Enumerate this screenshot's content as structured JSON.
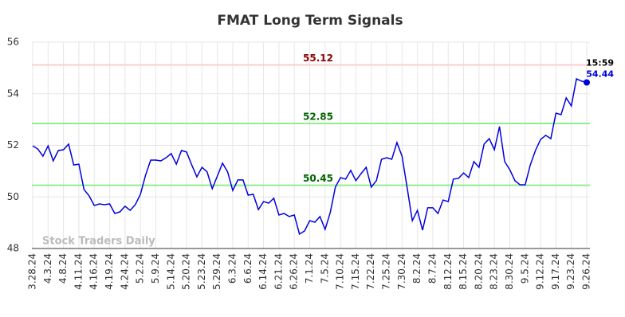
{
  "chart_data": {
    "type": "line",
    "title": "FMAT Long Term Signals",
    "categories": [
      "3.28.24",
      null,
      null,
      "4.3.24",
      null,
      null,
      "4.8.24",
      null,
      null,
      "4.11.24",
      null,
      null,
      "4.16.24",
      null,
      null,
      "4.19.24",
      null,
      null,
      "4.24.24",
      null,
      null,
      "5.2.24",
      null,
      null,
      "5.9.24",
      null,
      null,
      "5.14.24",
      null,
      null,
      "5.20.24",
      null,
      null,
      "5.23.24",
      null,
      null,
      "5.29.24",
      null,
      null,
      "6.3.24",
      null,
      null,
      "6.6.24",
      null,
      null,
      "6.14.24",
      null,
      null,
      "6.21.24",
      null,
      null,
      "6.26.24",
      null,
      null,
      "7.1.24",
      null,
      null,
      "7.5.24",
      null,
      null,
      "7.10.24",
      null,
      null,
      "7.15.24",
      null,
      null,
      "7.22.24",
      null,
      null,
      "7.25.24",
      null,
      null,
      "7.30.24",
      null,
      null,
      "8.2.24",
      null,
      null,
      "8.7.24",
      null,
      null,
      "8.12.24",
      null,
      null,
      "8.15.24",
      null,
      null,
      "8.20.24",
      null,
      null,
      "8.23.24",
      null,
      null,
      "8.30.24",
      null,
      null,
      "9.5.24",
      null,
      null,
      "9.12.24",
      null,
      null,
      "9.17.24",
      null,
      null,
      "9.23.24",
      null,
      null,
      "9.26.24"
    ],
    "values": [
      51.98,
      51.86,
      51.58,
      51.98,
      51.4,
      51.8,
      51.83,
      52.05,
      51.24,
      51.27,
      50.29,
      50.04,
      49.67,
      49.73,
      49.7,
      49.73,
      49.36,
      49.42,
      49.64,
      49.48,
      49.7,
      50.1,
      50.84,
      51.43,
      51.43,
      51.4,
      51.52,
      51.68,
      51.27,
      51.8,
      51.74,
      51.24,
      50.78,
      51.15,
      50.97,
      50.32,
      50.81,
      51.31,
      50.97,
      50.25,
      50.66,
      50.66,
      50.07,
      50.1,
      49.51,
      49.82,
      49.76,
      49.95,
      49.3,
      49.36,
      49.24,
      49.3,
      48.56,
      48.68,
      49.08,
      49.02,
      49.24,
      48.74,
      49.39,
      50.38,
      50.75,
      50.69,
      51.03,
      50.63,
      50.9,
      51.15,
      50.38,
      50.63,
      51.46,
      51.52,
      51.46,
      52.11,
      51.58,
      50.35,
      49.08,
      49.48,
      48.71,
      49.58,
      49.58,
      49.36,
      49.88,
      49.82,
      50.69,
      50.72,
      50.93,
      50.75,
      51.37,
      51.15,
      52.05,
      52.26,
      51.83,
      52.73,
      51.37,
      51.06,
      50.63,
      50.47,
      50.47,
      51.24,
      51.8,
      52.23,
      52.39,
      52.26,
      53.25,
      53.19,
      53.84,
      53.53,
      54.58,
      54.49,
      54.44
    ],
    "color": "#0000dd",
    "ylim": [
      48,
      56
    ],
    "yticks": [
      48,
      50,
      52,
      54,
      56
    ],
    "grid": true,
    "hlines": [
      {
        "value": 55.12,
        "color": "#ffcccc",
        "label_color": "#8b0000"
      },
      {
        "value": 52.85,
        "color": "#90ee90",
        "label_color": "#006400"
      },
      {
        "value": 50.45,
        "color": "#90ee90",
        "label_color": "#006400"
      }
    ],
    "last_time": "15:59",
    "last_value": 54.44,
    "watermark": "Stock Traders Daily"
  }
}
